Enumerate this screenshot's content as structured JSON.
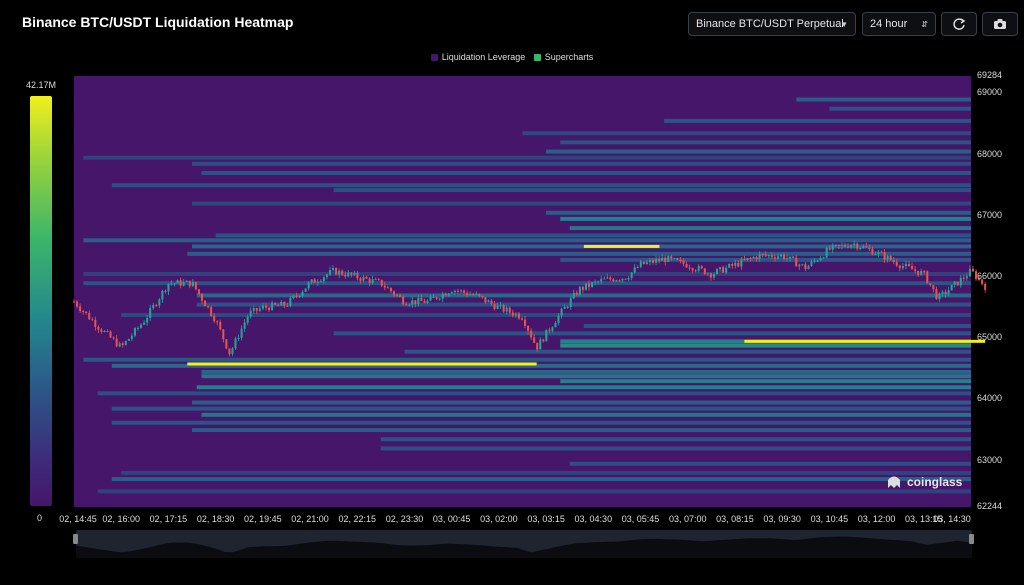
{
  "header": {
    "title": "Binance BTC/USDT Liquidation Heatmap",
    "pair_select": "Binance BTC/USDT Perpetual",
    "range_select": "24 hour",
    "refresh_icon": "refresh-icon",
    "camera_icon": "camera-icon"
  },
  "legend": [
    {
      "label": "Liquidation Leverage",
      "color": "#45166a"
    },
    {
      "label": "Supercharts",
      "color": "#3bb56a"
    }
  ],
  "colorscale": {
    "max_label": "42.17M",
    "min_label": "0"
  },
  "watermark": "coinglass",
  "chart_data": {
    "type": "heatmap",
    "title": "Binance BTC/USDT Liquidation Heatmap",
    "ylim": [
      62244,
      69284
    ],
    "y_ticks": [
      "69284",
      "69000",
      "68000",
      "67000",
      "66000",
      "65000",
      "64000",
      "63000",
      "62244"
    ],
    "x_ticks": [
      "02, 14:45",
      "02, 16:00",
      "02, 17:15",
      "02, 18:30",
      "02, 19:45",
      "02, 21:00",
      "02, 22:15",
      "02, 23:30",
      "03, 00:45",
      "03, 02:00",
      "03, 03:15",
      "03, 04:30",
      "03, 05:45",
      "03, 07:00",
      "03, 08:15",
      "03, 09:30",
      "03, 10:45",
      "03, 12:00",
      "03, 13:15",
      "03, 14:30"
    ],
    "colorbar_max": "42.17M",
    "colorbar_min": "0",
    "price_path": [
      {
        "t": 0,
        "p": 65600
      },
      {
        "t": 0.5,
        "p": 65200
      },
      {
        "t": 1,
        "p": 64850
      },
      {
        "t": 1.5,
        "p": 65300
      },
      {
        "t": 2,
        "p": 65900
      },
      {
        "t": 2.5,
        "p": 65900
      },
      {
        "t": 3,
        "p": 65300
      },
      {
        "t": 3.3,
        "p": 64750
      },
      {
        "t": 3.7,
        "p": 65400
      },
      {
        "t": 4,
        "p": 65500
      },
      {
        "t": 4.5,
        "p": 65550
      },
      {
        "t": 5,
        "p": 65900
      },
      {
        "t": 5.5,
        "p": 66100
      },
      {
        "t": 6,
        "p": 66000
      },
      {
        "t": 6.5,
        "p": 65900
      },
      {
        "t": 7,
        "p": 65600
      },
      {
        "t": 7.5,
        "p": 65600
      },
      {
        "t": 8,
        "p": 65800
      },
      {
        "t": 8.5,
        "p": 65700
      },
      {
        "t": 9,
        "p": 65500
      },
      {
        "t": 9.5,
        "p": 65350
      },
      {
        "t": 9.8,
        "p": 64850
      },
      {
        "t": 10.2,
        "p": 65300
      },
      {
        "t": 10.7,
        "p": 65800
      },
      {
        "t": 11.2,
        "p": 65950
      },
      {
        "t": 11.7,
        "p": 66000
      },
      {
        "t": 12,
        "p": 66200
      },
      {
        "t": 12.5,
        "p": 66300
      },
      {
        "t": 13,
        "p": 66200
      },
      {
        "t": 13.5,
        "p": 66050
      },
      {
        "t": 14,
        "p": 66200
      },
      {
        "t": 14.5,
        "p": 66350
      },
      {
        "t": 15,
        "p": 66350
      },
      {
        "t": 15.5,
        "p": 66150
      },
      {
        "t": 16,
        "p": 66450
      },
      {
        "t": 16.5,
        "p": 66550
      },
      {
        "t": 17,
        "p": 66400
      },
      {
        "t": 17.5,
        "p": 66200
      },
      {
        "t": 18,
        "p": 66050
      },
      {
        "t": 18.3,
        "p": 65650
      },
      {
        "t": 18.7,
        "p": 65900
      },
      {
        "t": 19,
        "p": 66100
      },
      {
        "t": 19.3,
        "p": 65850
      }
    ],
    "bands": [
      {
        "price": 68900,
        "start": 15.3,
        "level": 0.35
      },
      {
        "price": 68750,
        "start": 16.0,
        "level": 0.3
      },
      {
        "price": 68550,
        "start": 12.5,
        "level": 0.3
      },
      {
        "price": 68350,
        "start": 9.5,
        "level": 0.25
      },
      {
        "price": 68200,
        "start": 10.3,
        "level": 0.3
      },
      {
        "price": 68050,
        "start": 10.0,
        "level": 0.35
      },
      {
        "price": 67950,
        "start": 0.2,
        "level": 0.22
      },
      {
        "price": 67850,
        "start": 2.5,
        "level": 0.28
      },
      {
        "price": 67700,
        "start": 2.7,
        "level": 0.3
      },
      {
        "price": 67500,
        "start": 0.8,
        "level": 0.28
      },
      {
        "price": 67420,
        "start": 5.5,
        "level": 0.28
      },
      {
        "price": 67200,
        "start": 2.5,
        "level": 0.25
      },
      {
        "price": 67050,
        "start": 10.0,
        "level": 0.35
      },
      {
        "price": 66950,
        "start": 10.3,
        "level": 0.5
      },
      {
        "price": 66800,
        "start": 10.5,
        "level": 0.45
      },
      {
        "price": 66680,
        "start": 3.0,
        "level": 0.3
      },
      {
        "price": 66600,
        "start": 0.2,
        "level": 0.35
      },
      {
        "price": 66500,
        "start": 2.5,
        "level": 0.38
      },
      {
        "price": 66380,
        "start": 2.4,
        "level": 0.35
      },
      {
        "price": 66280,
        "start": 10.3,
        "level": 0.32
      },
      {
        "price": 66050,
        "start": 0.2,
        "level": 0.2
      },
      {
        "price": 65900,
        "start": 0.2,
        "level": 0.3
      },
      {
        "price": 65700,
        "start": 2.6,
        "level": 0.4
      },
      {
        "price": 65550,
        "start": 2.6,
        "level": 0.3
      },
      {
        "price": 65380,
        "start": 1.0,
        "level": 0.25
      },
      {
        "price": 65200,
        "start": 10.8,
        "level": 0.3
      },
      {
        "price": 65080,
        "start": 5.5,
        "level": 0.3
      },
      {
        "price": 64950,
        "start": 10.3,
        "level": 0.5
      },
      {
        "price": 64880,
        "start": 10.3,
        "level": 0.55
      },
      {
        "price": 64780,
        "start": 7.0,
        "level": 0.3
      },
      {
        "price": 64650,
        "start": 0.2,
        "level": 0.32
      },
      {
        "price": 64550,
        "start": 0.8,
        "level": 0.4
      },
      {
        "price": 64450,
        "start": 2.7,
        "level": 0.38
      },
      {
        "price": 64380,
        "start": 2.7,
        "level": 0.45
      },
      {
        "price": 64300,
        "start": 10.3,
        "level": 0.5
      },
      {
        "price": 64200,
        "start": 2.6,
        "level": 0.5
      },
      {
        "price": 64100,
        "start": 0.5,
        "level": 0.28
      },
      {
        "price": 63950,
        "start": 2.5,
        "level": 0.35
      },
      {
        "price": 63850,
        "start": 0.8,
        "level": 0.3
      },
      {
        "price": 63750,
        "start": 2.7,
        "level": 0.45
      },
      {
        "price": 63620,
        "start": 0.8,
        "level": 0.3
      },
      {
        "price": 63500,
        "start": 2.5,
        "level": 0.35
      },
      {
        "price": 63350,
        "start": 6.5,
        "level": 0.3
      },
      {
        "price": 63200,
        "start": 6.5,
        "level": 0.28
      },
      {
        "price": 62950,
        "start": 10.5,
        "level": 0.28
      },
      {
        "price": 62800,
        "start": 1.0,
        "level": 0.22
      },
      {
        "price": 62700,
        "start": 0.8,
        "level": 0.35
      },
      {
        "price": 62500,
        "start": 0.5,
        "level": 0.22
      }
    ],
    "hot_lines": [
      {
        "price": 64580,
        "start": 2.4,
        "end": 9.8
      },
      {
        "price": 66500,
        "start": 10.8,
        "end": 12.4
      },
      {
        "price": 64950,
        "start": 14.2,
        "end": 19.3
      }
    ]
  }
}
